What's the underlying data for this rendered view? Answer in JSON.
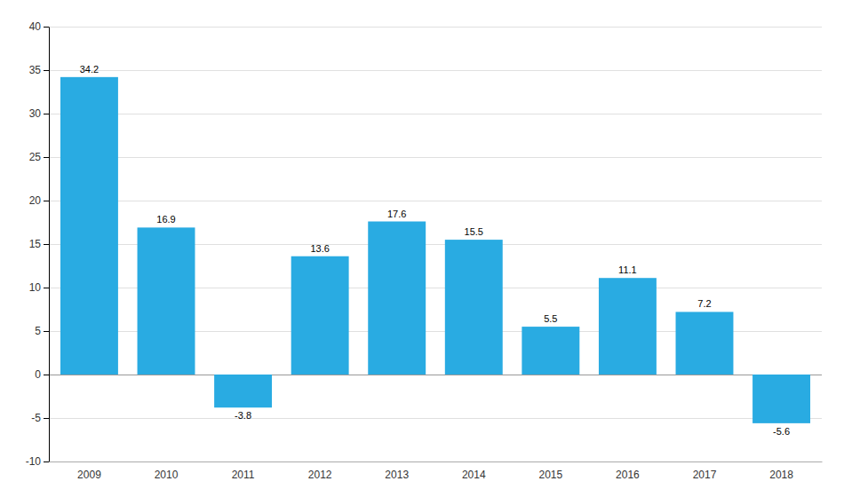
{
  "chart_data": {
    "type": "bar",
    "categories": [
      "2009",
      "2010",
      "2011",
      "2012",
      "2013",
      "2014",
      "2015",
      "2016",
      "2017",
      "2018"
    ],
    "values": [
      34.2,
      16.9,
      -3.8,
      13.6,
      17.6,
      15.5,
      5.5,
      11.1,
      7.2,
      -5.6
    ],
    "color": "#29ABE2",
    "ylim": [
      -10,
      40
    ],
    "yticks": [
      -10,
      -5,
      0,
      5,
      10,
      15,
      20,
      25,
      30,
      35,
      40
    ],
    "grid": true,
    "data_labels": true
  }
}
